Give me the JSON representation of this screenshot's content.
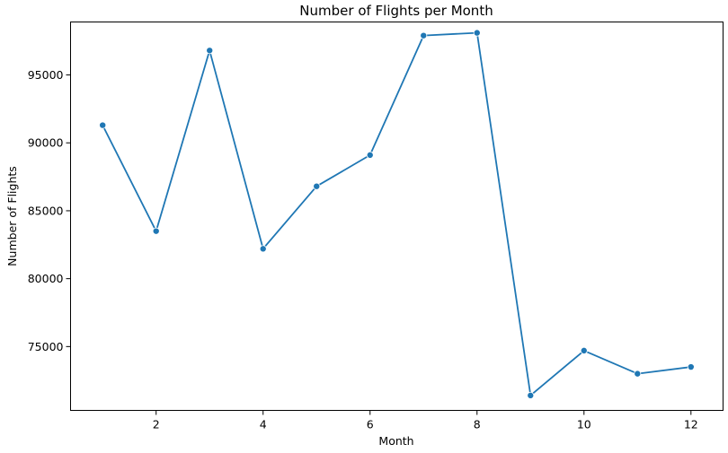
{
  "chart_data": {
    "type": "line",
    "title": "Number of Flights per Month",
    "xlabel": "Month",
    "ylabel": "Number of Flights",
    "xlim": [
      0.4,
      12.6
    ],
    "ylim": [
      70300,
      98900
    ],
    "xticks": [
      2,
      4,
      6,
      8,
      10,
      12
    ],
    "yticks": [
      75000,
      80000,
      85000,
      90000,
      95000
    ],
    "grid": false,
    "series": [
      {
        "color": "#1f77b4",
        "marker": "circle",
        "x": [
          1,
          2,
          3,
          4,
          5,
          6,
          7,
          8,
          9,
          10,
          11,
          12
        ],
        "values": [
          91300,
          83500,
          96800,
          82200,
          86800,
          89100,
          97900,
          98100,
          71400,
          74700,
          73000,
          73500
        ]
      }
    ]
  }
}
